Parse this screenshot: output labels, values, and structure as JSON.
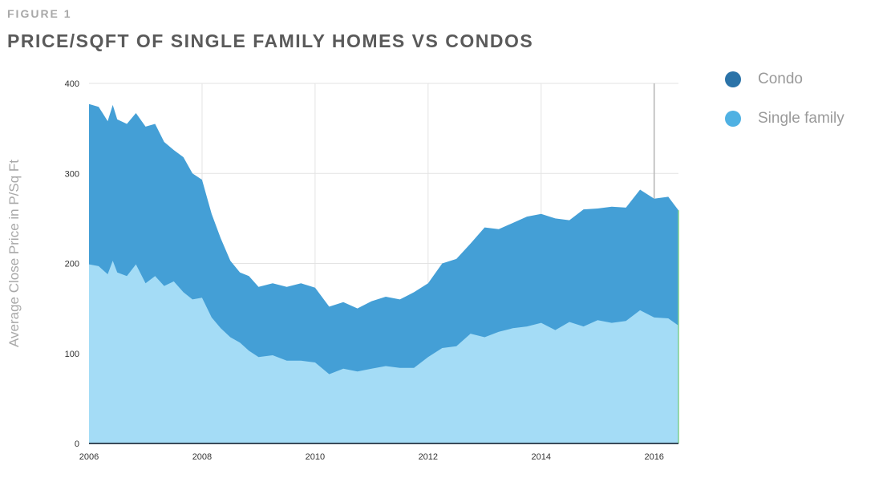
{
  "header": {
    "figure_label": "FIGURE 1",
    "title": "PRICE/SQFT OF SINGLE FAMILY HOMES VS CONDOS"
  },
  "chart_data": {
    "type": "area",
    "title": "PRICE/SQFT OF SINGLE FAMILY HOMES VS CONDOS",
    "xlabel": "",
    "ylabel": "Average Close Price in P/Sq Ft",
    "xlim": [
      2006,
      2016.43
    ],
    "ylim": [
      0,
      400
    ],
    "x_ticks": [
      2006,
      2008,
      2010,
      2012,
      2014,
      2016
    ],
    "y_ticks": [
      0,
      100,
      200,
      300,
      400
    ],
    "grid": true,
    "legend_position": "top-right",
    "colors": {
      "condo": "#449fd6",
      "single_family": "#a4dcf6",
      "legend_condo": "#2b73a8",
      "legend_single": "#4fb1e3"
    },
    "x": [
      2006.0,
      2006.17,
      2006.33,
      2006.42,
      2006.5,
      2006.67,
      2006.83,
      2007.0,
      2007.17,
      2007.33,
      2007.5,
      2007.67,
      2007.83,
      2008.0,
      2008.17,
      2008.33,
      2008.5,
      2008.67,
      2008.83,
      2009.0,
      2009.25,
      2009.5,
      2009.75,
      2010.0,
      2010.25,
      2010.5,
      2010.75,
      2011.0,
      2011.25,
      2011.5,
      2011.75,
      2012.0,
      2012.25,
      2012.5,
      2012.75,
      2013.0,
      2013.25,
      2013.5,
      2013.75,
      2014.0,
      2014.25,
      2014.5,
      2014.75,
      2015.0,
      2015.25,
      2015.5,
      2015.75,
      2016.0,
      2016.25,
      2016.43
    ],
    "series": [
      {
        "name": "Condo",
        "values": [
          377,
          374,
          358,
          376,
          360,
          355,
          367,
          352,
          355,
          335,
          326,
          318,
          300,
          293,
          255,
          228,
          203,
          190,
          186,
          174,
          178,
          174,
          178,
          173,
          152,
          157,
          150,
          158,
          163,
          160,
          168,
          178,
          200,
          205,
          222,
          240,
          238,
          245,
          252,
          255,
          250,
          248,
          260,
          261,
          263,
          262,
          282,
          272,
          274,
          259
        ]
      },
      {
        "name": "Single family",
        "values": [
          199,
          197,
          188,
          203,
          190,
          186,
          199,
          178,
          186,
          175,
          180,
          168,
          160,
          162,
          140,
          128,
          118,
          112,
          103,
          96,
          98,
          92,
          92,
          90,
          77,
          83,
          80,
          83,
          86,
          84,
          84,
          96,
          106,
          108,
          122,
          118,
          124,
          128,
          130,
          134,
          126,
          135,
          130,
          137,
          134,
          136,
          148,
          140,
          139,
          131
        ]
      }
    ]
  },
  "legend": {
    "items": [
      {
        "label": "Condo",
        "color": "#2b73a8"
      },
      {
        "label": "Single family",
        "color": "#4fb1e3"
      }
    ]
  }
}
